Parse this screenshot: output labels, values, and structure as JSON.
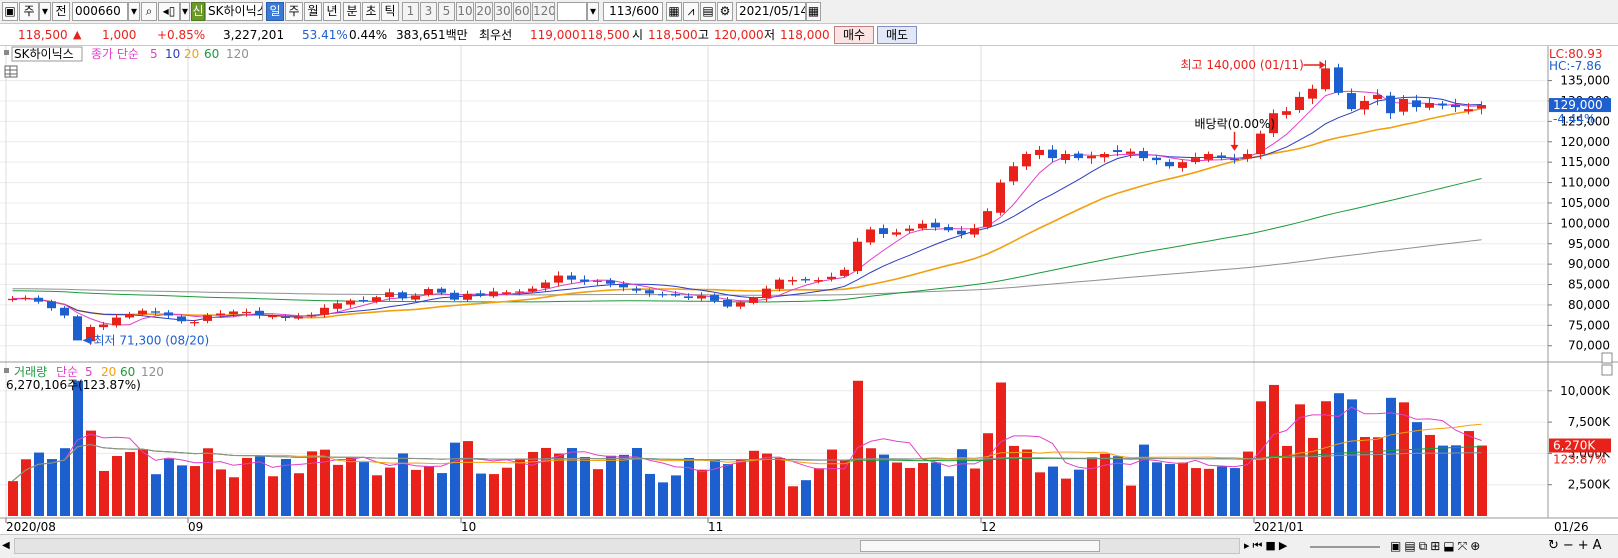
{
  "toolbar": {
    "period_select": "주",
    "prev_label": "전",
    "code": "000660",
    "name": "SK하이닉스",
    "name_badge": "신",
    "periods": [
      "일",
      "주",
      "월",
      "년",
      "분",
      "초",
      "틱"
    ],
    "selected_period": "일",
    "intervals": [
      "1",
      "3",
      "5",
      "10",
      "20",
      "30",
      "60",
      "120"
    ],
    "count": "113/600",
    "date": "2021/05/14"
  },
  "info": {
    "price": "118,500",
    "change_arrow": "▲",
    "change": "1,000",
    "change_pct": "+0.85%",
    "volume": "3,227,201",
    "volume_ratio": "53.41%",
    "turnover": "0.44%",
    "amount": "383,651백만",
    "best_label": "최우선",
    "ask": "119,000",
    "bid": "118,500",
    "open_label": "시",
    "open": "118,500",
    "high_label": "고",
    "high": "120,000",
    "low_label": "저",
    "low": "118,000",
    "buy_label": "매수",
    "sell_label": "매도"
  },
  "colors": {
    "up": "#e8211b",
    "down": "#1d5fcf",
    "ma5": "#e040c8",
    "ma10": "#2c3cc0",
    "ma20": "#f2a010",
    "ma60": "#1a9a3a",
    "ma120": "#909090"
  },
  "price_panel": {
    "legend_name": "SK하이닉스",
    "legend_type": "종가 단순",
    "ma_periods": [
      "5",
      "10",
      "20",
      "60",
      "120"
    ],
    "lc_label": "LC:80.93",
    "hc_label": "HC:-7.86",
    "current_price_tag": "129,000",
    "current_pct_tag": "-4.44%",
    "high_annotation": "최고 140,000 (01/11)",
    "low_annotation": "최저 71,300 (08/20)",
    "dividend_annotation": "배당락(0.00%)"
  },
  "volume_panel": {
    "legend_name": "거래량",
    "legend_type": "단순",
    "ma_periods": [
      "5",
      "20",
      "60",
      "120"
    ],
    "current_value": "6,270,106주(123.87%)",
    "current_tag": "6,270K",
    "current_pct_tag": "123.87%"
  },
  "chart_data": {
    "type": "candlestick",
    "y_ticks": [
      "135,000",
      "130,000",
      "125,000",
      "120,000",
      "115,000",
      "110,000",
      "105,000",
      "100,000",
      "95,000",
      "90,000",
      "85,000",
      "80,000",
      "75,000",
      "70,000"
    ],
    "y_tick_values": [
      135000,
      130000,
      125000,
      120000,
      115000,
      110000,
      105000,
      100000,
      95000,
      90000,
      85000,
      80000,
      75000,
      70000
    ],
    "ylim": [
      66500,
      142500
    ],
    "volume_ticks": [
      "10,000K",
      "7,500K",
      "5,000K",
      "2,500K"
    ],
    "volume_tick_values": [
      10000,
      7500,
      5000,
      2500
    ],
    "volume_ylim": [
      0,
      11500
    ],
    "x_labels": [
      {
        "index": 0,
        "label": "2020/08"
      },
      {
        "index": 14,
        "label": "09"
      },
      {
        "index": 35,
        "label": "10"
      },
      {
        "index": 54,
        "label": "11"
      },
      {
        "index": 75,
        "label": "12"
      },
      {
        "index": 96,
        "label": "2021/01"
      },
      {
        "index": 114,
        "label": "01/26"
      }
    ],
    "close": [
      81500,
      81700,
      80800,
      79200,
      77400,
      71300,
      74600,
      75200,
      76900,
      77800,
      78600,
      78100,
      77400,
      76000,
      75800,
      77500,
      77900,
      78400,
      78300,
      77400,
      77300,
      76800,
      77100,
      77600,
      79300,
      80400,
      81100,
      81000,
      81900,
      83100,
      81600,
      82300,
      83900,
      83000,
      81300,
      82700,
      82400,
      83300,
      83100,
      83300,
      84000,
      85500,
      87200,
      86200,
      85700,
      85900,
      85200,
      84300,
      83500,
      82800,
      82400,
      82300,
      81700,
      82200,
      81000,
      79600,
      80600,
      81700,
      84000,
      86200,
      86100,
      86000,
      86100,
      86900,
      88600,
      95500,
      98500,
      97400,
      97800,
      98700,
      99900,
      99000,
      98300,
      97300,
      98800,
      103000,
      110000,
      114000,
      117000,
      118000,
      116000,
      117000,
      116000,
      116500,
      117000,
      117500,
      117600,
      116000,
      115500,
      114000,
      115000,
      116000,
      117000,
      116000,
      115500,
      117000,
      122000,
      127000,
      127500,
      131000,
      133000,
      138000,
      132000,
      128000,
      130000,
      131500,
      127000,
      130500,
      128500,
      129500,
      129000,
      128500,
      128000,
      129000
    ]
  }
}
